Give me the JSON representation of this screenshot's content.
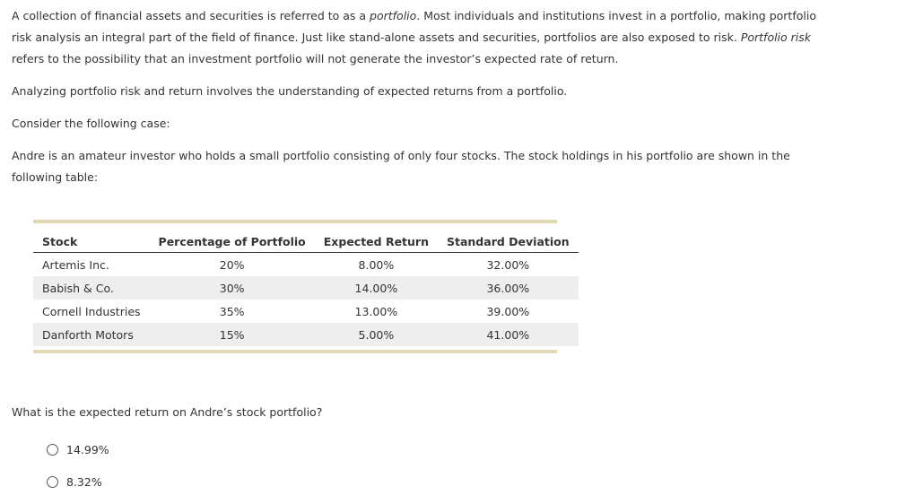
{
  "intro": {
    "part1": "A collection of financial assets and securities is referred to as a ",
    "term1": "portfolio",
    "part2": ". Most individuals and institutions invest in a portfolio, making portfolio risk analysis an integral part of the field of finance. Just like stand-alone assets and securities, portfolios are also exposed to risk. ",
    "term2": "Portfolio risk",
    "part3": " refers to the possibility that an investment portfolio will not generate the investor’s expected rate of return."
  },
  "analyzing": "Analyzing portfolio risk and return involves the understanding of expected returns from a portfolio.",
  "consider": "Consider the following case:",
  "case_text": "Andre is an amateur investor who holds a small portfolio consisting of only four stocks. The stock holdings in his portfolio are shown in the following table:",
  "table": {
    "headers": [
      "Stock",
      "Percentage of Portfolio",
      "Expected Return",
      "Standard Deviation"
    ],
    "rows": [
      [
        "Artemis Inc.",
        "20%",
        "8.00%",
        "32.00%"
      ],
      [
        "Babish & Co.",
        "30%",
        "14.00%",
        "36.00%"
      ],
      [
        "Cornell Industries",
        "35%",
        "13.00%",
        "39.00%"
      ],
      [
        "Danforth Motors",
        "15%",
        "5.00%",
        "41.00%"
      ]
    ]
  },
  "question": "What is the expected return on Andre’s stock portfolio?",
  "options": [
    "14.99%",
    "8.32%"
  ],
  "colors": {
    "text": "#333333",
    "table_bar": "#e2d9b3",
    "row_shade": "#eeeeee"
  }
}
